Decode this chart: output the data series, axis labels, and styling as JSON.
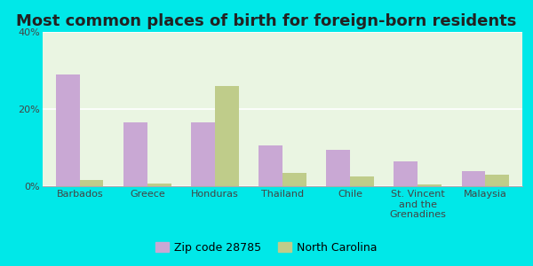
{
  "title": "Most common places of birth for foreign-born residents",
  "categories": [
    "Barbados",
    "Greece",
    "Honduras",
    "Thailand",
    "Chile",
    "St. Vincent\nand the\nGrenadines",
    "Malaysia"
  ],
  "zip_values": [
    29.0,
    16.5,
    16.5,
    10.5,
    9.5,
    6.5,
    4.0
  ],
  "nc_values": [
    1.5,
    0.7,
    26.0,
    3.5,
    2.5,
    0.5,
    3.0
  ],
  "zip_color": "#c9a8d4",
  "nc_color": "#bfcc8a",
  "background_plot": "#eaf5e2",
  "background_fig": "#00e8e8",
  "ylim": [
    0,
    40
  ],
  "yticks": [
    0,
    20,
    40
  ],
  "ytick_labels": [
    "0%",
    "20%",
    "40%"
  ],
  "bar_width": 0.35,
  "legend_labels": [
    "Zip code 28785",
    "North Carolina"
  ],
  "title_fontsize": 13,
  "tick_fontsize": 8,
  "legend_fontsize": 9
}
